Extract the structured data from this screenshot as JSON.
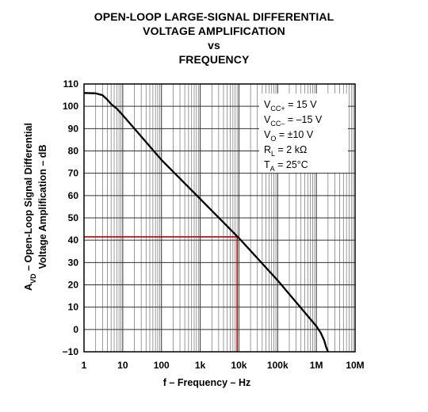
{
  "chart_data": {
    "type": "line",
    "title_lines": [
      "OPEN-LOOP LARGE-SIGNAL DIFFERENTIAL",
      "VOLTAGE AMPLIFICATION",
      "vs",
      "FREQUENCY"
    ],
    "xlabel": "f – Frequency – Hz",
    "ylabel_lines": [
      {
        "base": "A",
        "sub": "VD",
        "rest": " – Open-Loop Signal Differential"
      },
      {
        "base": "Voltage Amplification – dB",
        "sub": "",
        "rest": ""
      }
    ],
    "x_scale": "log",
    "xlim": [
      1,
      10000000
    ],
    "ylim": [
      -10,
      110
    ],
    "x_tick_values": [
      1,
      10,
      100,
      1000,
      10000,
      100000,
      1000000,
      10000000
    ],
    "x_tick_labels": [
      "1",
      "10",
      "100",
      "1k",
      "10k",
      "100k",
      "1M",
      "10M"
    ],
    "y_tick_values": [
      110,
      100,
      90,
      80,
      70,
      60,
      50,
      40,
      30,
      20,
      10,
      0,
      -10
    ],
    "y_tick_labels": [
      "110",
      "100",
      "90",
      "80",
      "70",
      "60",
      "50",
      "40",
      "30",
      "20",
      "10",
      "0",
      "−10"
    ],
    "grid": true,
    "series": [
      {
        "color": "#000000",
        "x": [
          1,
          2,
          3,
          4,
          5,
          7,
          10,
          100,
          1000,
          10000,
          100000,
          1000000,
          1300000,
          1600000,
          1800000,
          2000000
        ],
        "y": [
          106,
          105.8,
          105,
          103,
          101,
          99,
          96,
          76,
          58.5,
          41,
          22,
          1.5,
          -1.5,
          -5,
          -8,
          -10
        ]
      }
    ],
    "reference_point": {
      "x": 9000,
      "y": 41.5,
      "color": "#c00000"
    },
    "conditions": [
      {
        "base": "V",
        "sub": "CC+",
        "rest": " = 15 V"
      },
      {
        "base": "V",
        "sub": "CC–",
        "rest": " = –15 V"
      },
      {
        "base": "V",
        "sub": "O",
        "rest": " = ±10 V"
      },
      {
        "base": "R",
        "sub": "L",
        "rest": " = 2 kΩ"
      },
      {
        "base": "T",
        "sub": "A",
        "rest": " = 25°C"
      }
    ]
  }
}
